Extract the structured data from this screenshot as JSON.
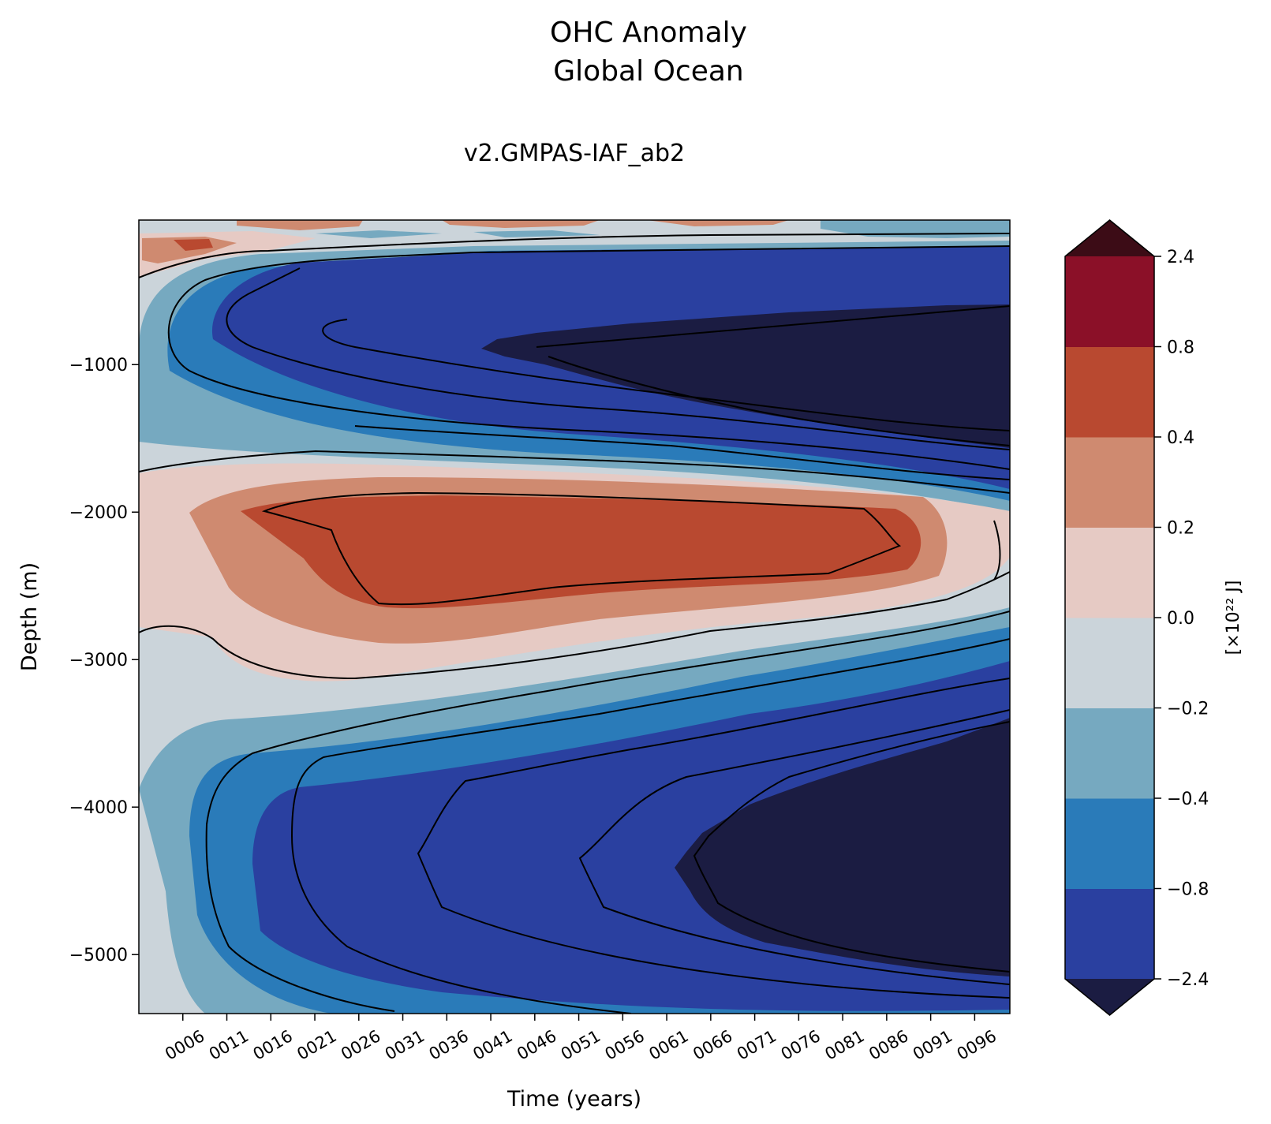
{
  "chart_data": {
    "type": "contourf",
    "title_line1": "OHC Anomaly",
    "title_line2": "Global Ocean",
    "subtitle": "v2.GMPAS-IAF_ab2",
    "xlabel": "Time (years)",
    "ylabel": "Depth (m)",
    "xlim": [
      1,
      100
    ],
    "ylim": [
      -5400,
      -20
    ],
    "x_ticks": [
      {
        "value": 6,
        "label": "0006"
      },
      {
        "value": 11,
        "label": "0011"
      },
      {
        "value": 16,
        "label": "0016"
      },
      {
        "value": 21,
        "label": "0021"
      },
      {
        "value": 26,
        "label": "0026"
      },
      {
        "value": 31,
        "label": "0031"
      },
      {
        "value": 36,
        "label": "0036"
      },
      {
        "value": 41,
        "label": "0041"
      },
      {
        "value": 46,
        "label": "0046"
      },
      {
        "value": 51,
        "label": "0051"
      },
      {
        "value": 56,
        "label": "0056"
      },
      {
        "value": 61,
        "label": "0061"
      },
      {
        "value": 66,
        "label": "0066"
      },
      {
        "value": 71,
        "label": "0071"
      },
      {
        "value": 76,
        "label": "0076"
      },
      {
        "value": 81,
        "label": "0081"
      },
      {
        "value": 86,
        "label": "0086"
      },
      {
        "value": 91,
        "label": "0091"
      },
      {
        "value": 96,
        "label": "0096"
      }
    ],
    "y_ticks": [
      {
        "value": -1000,
        "label": "−1000"
      },
      {
        "value": -2000,
        "label": "−2000"
      },
      {
        "value": -3000,
        "label": "−3000"
      },
      {
        "value": -4000,
        "label": "−4000"
      },
      {
        "value": -5000,
        "label": "−5000"
      }
    ],
    "colorbar": {
      "label": "[×10²² J]",
      "levels": [
        -2.4,
        -0.8,
        -0.4,
        -0.2,
        0.0,
        0.2,
        0.4,
        0.8,
        2.4
      ],
      "tick_labels": [
        "−2.4",
        "−0.8",
        "−0.4",
        "−0.2",
        "0.0",
        "0.2",
        "0.4",
        "0.8",
        "2.4"
      ],
      "colors": [
        "#2a40a0",
        "#2a7bb9",
        "#76a9c0",
        "#cbd4da",
        "#e6cac4",
        "#cf8a70",
        "#b94930",
        "#8b1028"
      ],
      "under_color": "#1b1c42",
      "over_color": "#3c0c16",
      "extend": "both"
    },
    "fields": [
      {
        "name": "deep-navy-upper",
        "value_range": "< -2.4",
        "time_range": [
          41,
          100
        ],
        "depth_range": [
          -1550,
          -600
        ]
      },
      {
        "name": "navy-upper",
        "value_range": "-2.4 to -0.8",
        "time_range": [
          11,
          100
        ],
        "depth_range": [
          -1700,
          -150
        ]
      },
      {
        "name": "red-core",
        "value_range": "0.4 to 0.8",
        "time_range": [
          14,
          92
        ],
        "depth_range": [
          -2650,
          -1850
        ]
      },
      {
        "name": "deep-navy-lower",
        "value_range": "< -2.4",
        "time_range": [
          63,
          100
        ],
        "depth_range": [
          -5100,
          -3400
        ]
      },
      {
        "name": "navy-lower",
        "value_range": "-2.4 to -0.8",
        "time_range": [
          15,
          100
        ],
        "depth_range": [
          -5350,
          -2900
        ]
      }
    ]
  }
}
